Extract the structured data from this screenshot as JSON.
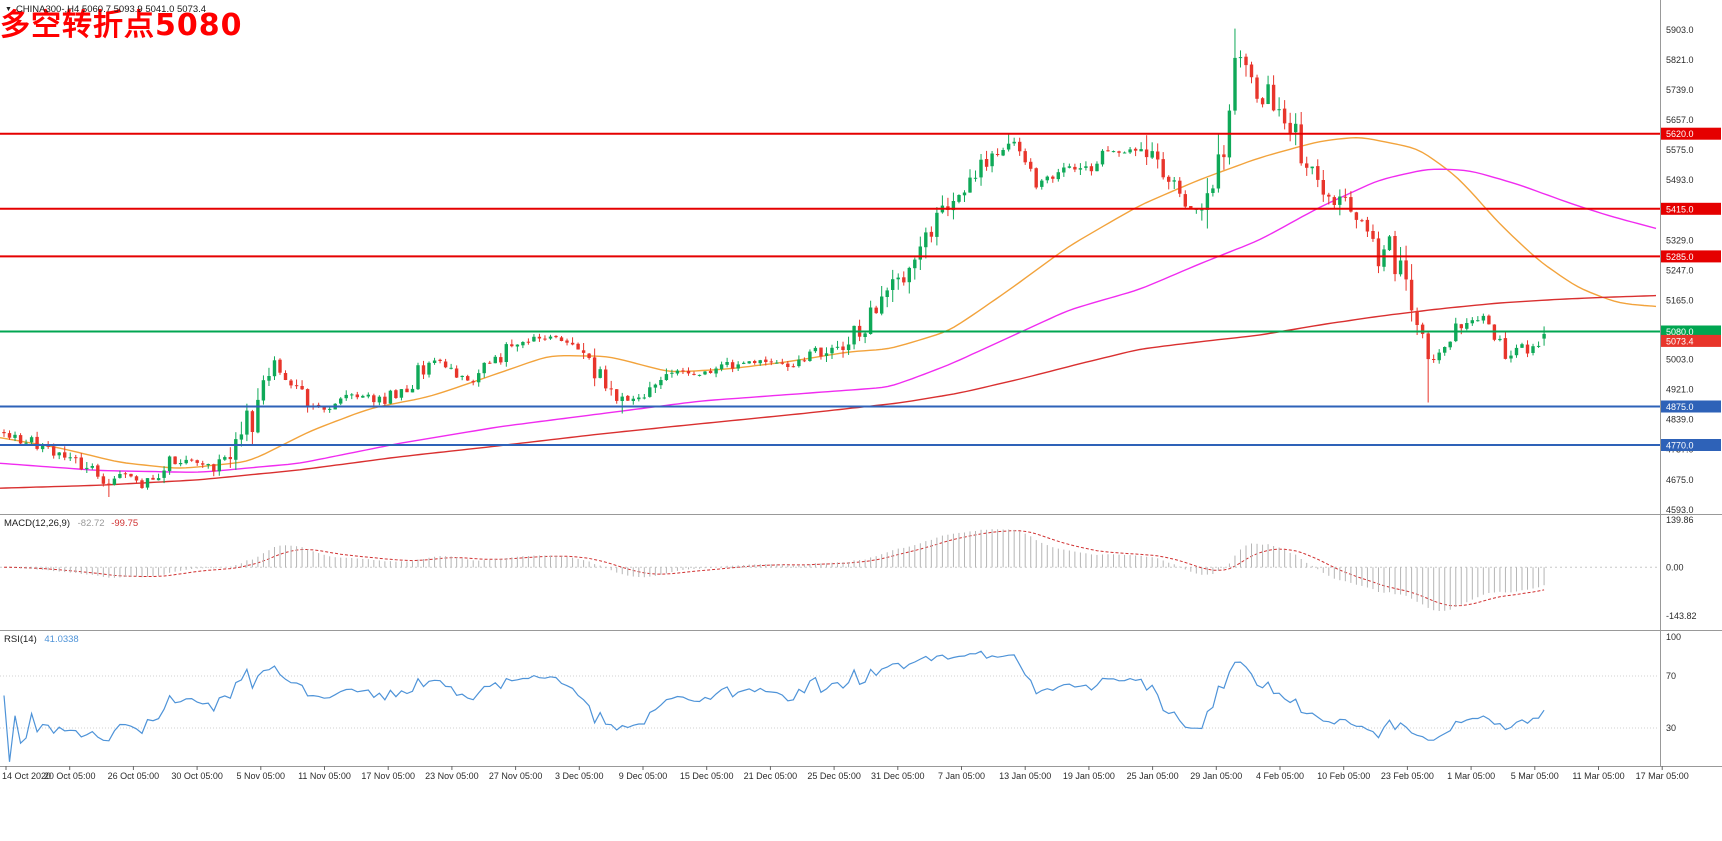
{
  "symbol_bar": {
    "dropdown_icon": "▼",
    "symbol": "CHINA300-",
    "timeframe": "H4",
    "open": 5060.7,
    "high": 5093.9,
    "low": 5041.0,
    "close": 5073.4,
    "text": "CHINA300-,H4  5060.7 5093.9 5041.0 5073.4"
  },
  "annotation": {
    "text": "多空转折点5080",
    "color": "#FF0000"
  },
  "colors": {
    "up": "#0FA958",
    "down": "#E8352B",
    "ma_fast": "#F2A33C",
    "ma_mid": "#F02CF0",
    "ma_slow": "#D93030",
    "level_red": "#E50000",
    "level_green": "#00A651",
    "level_blue": "#2E62B8",
    "macd_hist": "#B5B5B5",
    "macd_signal": "#D03030",
    "rsi": "#4E93D8",
    "axis_text": "#2B2B2B",
    "separator": "#999999",
    "tag_text": "#FFFFFF"
  },
  "levels": [
    {
      "value": 5620.0,
      "label": "5620.0",
      "type": "resistance",
      "color_key": "level_red"
    },
    {
      "value": 5415.0,
      "label": "5415.0",
      "type": "resistance",
      "color_key": "level_red"
    },
    {
      "value": 5285.0,
      "label": "5285.0",
      "type": "resistance",
      "color_key": "level_red"
    },
    {
      "value": 5080.0,
      "label": "5080.0",
      "type": "pivot",
      "color_key": "level_green"
    },
    {
      "value": 4875.0,
      "label": "4875.0",
      "type": "support",
      "color_key": "level_blue"
    },
    {
      "value": 4770.0,
      "label": "4770.0",
      "type": "support",
      "color_key": "level_blue"
    }
  ],
  "current_price_tag": {
    "value": 5073.4,
    "label": "5073.4"
  },
  "price_axis": {
    "labels": [
      "5903.0",
      "5821.0",
      "5739.0",
      "5657.0",
      "5575.0",
      "5493.0",
      "5411.0",
      "5329.0",
      "5247.0",
      "5165.0",
      "5083.0",
      "5003.0",
      "4921.0",
      "4839.0",
      "4757.0",
      "4675.0",
      "4593.0"
    ]
  },
  "time_axis": {
    "labels": [
      "14 Oct 2020",
      "20 Oct 05:00",
      "26 Oct 05:00",
      "30 Oct 05:00",
      "5 Nov 05:00",
      "11 Nov 05:00",
      "17 Nov 05:00",
      "23 Nov 05:00",
      "27 Nov 05:00",
      "3 Dec 05:00",
      "9 Dec 05:00",
      "15 Dec 05:00",
      "21 Dec 05:00",
      "25 Dec 05:00",
      "31 Dec 05:00",
      "7 Jan 05:00",
      "13 Jan 05:00",
      "19 Jan 05:00",
      "25 Jan 05:00",
      "29 Jan 05:00",
      "4 Feb 05:00",
      "10 Feb 05:00",
      "23 Feb 05:00",
      "1 Mar 05:00",
      "5 Mar 05:00",
      "11 Mar 05:00",
      "17 Mar 05:00"
    ]
  },
  "indicators": {
    "macd": {
      "name": "MACD(12,26,9)",
      "main_value": "-82.72",
      "signal_value": "-99.75",
      "scale_labels": [
        "139.86",
        "0.00",
        "-143.82"
      ]
    },
    "rsi": {
      "name": "RSI(14)",
      "value": "41.0338",
      "scale_labels": [
        "100",
        "70",
        "30"
      ],
      "levels": [
        70,
        30
      ]
    }
  },
  "chart_data": {
    "type": "candlestick",
    "symbol": "CHINA300-",
    "timeframe": "H4",
    "ylim": [
      4587,
      5936
    ],
    "macd_ylim": [
      -180,
      152
    ],
    "rsi_ylim": [
      0,
      100
    ],
    "candle_count": 280,
    "candle_spacing_px": 5.52,
    "seed": 11,
    "price_path": [
      [
        0,
        4805
      ],
      [
        25,
        4783
      ],
      [
        55,
        4760
      ],
      [
        75,
        4735
      ],
      [
        95,
        4700
      ],
      [
        110,
        4665
      ],
      [
        125,
        4695
      ],
      [
        140,
        4663
      ],
      [
        155,
        4668
      ],
      [
        170,
        4718
      ],
      [
        192,
        4735
      ],
      [
        210,
        4705
      ],
      [
        228,
        4738
      ],
      [
        245,
        4798
      ],
      [
        256,
        4868
      ],
      [
        266,
        4968
      ],
      [
        274,
        4990
      ],
      [
        288,
        4948
      ],
      [
        305,
        4890
      ],
      [
        322,
        4862
      ],
      [
        340,
        4893
      ],
      [
        360,
        4908
      ],
      [
        384,
        4893
      ],
      [
        405,
        4932
      ],
      [
        425,
        4985
      ],
      [
        440,
        5002
      ],
      [
        455,
        4962
      ],
      [
        470,
        4944
      ],
      [
        490,
        5010
      ],
      [
        512,
        5032
      ],
      [
        532,
        5062
      ],
      [
        550,
        5072
      ],
      [
        563,
        5042
      ],
      [
        576,
        5052
      ],
      [
        592,
        5002
      ],
      [
        606,
        4942
      ],
      [
        620,
        4888
      ],
      [
        640,
        4905
      ],
      [
        660,
        4952
      ],
      [
        680,
        4972
      ],
      [
        704,
        4962
      ],
      [
        722,
        4992
      ],
      [
        742,
        4986
      ],
      [
        768,
        5002
      ],
      [
        786,
        4986
      ],
      [
        806,
        5012
      ],
      [
        832,
        5032
      ],
      [
        848,
        5062
      ],
      [
        862,
        5095
      ],
      [
        876,
        5152
      ],
      [
        896,
        5215
      ],
      [
        908,
        5272
      ],
      [
        922,
        5332
      ],
      [
        936,
        5392
      ],
      [
        960,
        5438
      ],
      [
        976,
        5498
      ],
      [
        992,
        5552
      ],
      [
        1010,
        5588
      ],
      [
        1024,
        5562
      ],
      [
        1038,
        5478
      ],
      [
        1052,
        5502
      ],
      [
        1066,
        5538
      ],
      [
        1088,
        5522
      ],
      [
        1104,
        5562
      ],
      [
        1120,
        5582
      ],
      [
        1136,
        5570
      ],
      [
        1152,
        5555
      ],
      [
        1166,
        5495
      ],
      [
        1180,
        5442
      ],
      [
        1196,
        5408
      ],
      [
        1210,
        5442
      ],
      [
        1218,
        5502
      ],
      [
        1226,
        5628
      ],
      [
        1235,
        5852
      ],
      [
        1243,
        5812
      ],
      [
        1252,
        5778
      ],
      [
        1260,
        5702
      ],
      [
        1270,
        5742
      ],
      [
        1280,
        5682
      ],
      [
        1292,
        5608
      ],
      [
        1304,
        5572
      ],
      [
        1316,
        5492
      ],
      [
        1328,
        5452
      ],
      [
        1344,
        5422
      ],
      [
        1356,
        5382
      ],
      [
        1368,
        5322
      ],
      [
        1378,
        5298
      ],
      [
        1388,
        5312
      ],
      [
        1400,
        5252
      ],
      [
        1410,
        5172
      ],
      [
        1420,
        5092
      ],
      [
        1430,
        4992
      ],
      [
        1440,
        5022
      ],
      [
        1450,
        5062
      ],
      [
        1464,
        5092
      ],
      [
        1476,
        5122
      ],
      [
        1486,
        5098
      ],
      [
        1496,
        5058
      ],
      [
        1506,
        5012
      ],
      [
        1518,
        5042
      ],
      [
        1528,
        5022
      ],
      [
        1536,
        5052
      ],
      [
        1546,
        5066
      ]
    ],
    "spikes": [
      {
        "x": 110,
        "low": 4628
      },
      {
        "x": 620,
        "low": 4856
      },
      {
        "x": 1010,
        "high": 5622
      },
      {
        "x": 1148,
        "high": 5616
      },
      {
        "x": 1235,
        "high": 5907
      },
      {
        "x": 1428,
        "low": 4886
      }
    ],
    "last_candle": {
      "open": 5060.7,
      "high": 5093.9,
      "low": 5041.0,
      "close": 5073.4
    },
    "moving_averages": [
      {
        "name": "MA-fast",
        "color_key": "ma_fast",
        "points": [
          [
            0,
            4790
          ],
          [
            60,
            4762
          ],
          [
            120,
            4722
          ],
          [
            180,
            4705
          ],
          [
            250,
            4725
          ],
          [
            310,
            4808
          ],
          [
            370,
            4870
          ],
          [
            430,
            4902
          ],
          [
            490,
            4958
          ],
          [
            550,
            5015
          ],
          [
            610,
            5012
          ],
          [
            670,
            4968
          ],
          [
            730,
            4978
          ],
          [
            790,
            4998
          ],
          [
            850,
            5025
          ],
          [
            890,
            5032
          ],
          [
            950,
            5082
          ],
          [
            1010,
            5195
          ],
          [
            1070,
            5315
          ],
          [
            1140,
            5425
          ],
          [
            1200,
            5495
          ],
          [
            1260,
            5555
          ],
          [
            1320,
            5600
          ],
          [
            1360,
            5612
          ],
          [
            1420,
            5578
          ],
          [
            1460,
            5496
          ],
          [
            1500,
            5372
          ],
          [
            1540,
            5270
          ],
          [
            1580,
            5196
          ],
          [
            1620,
            5156
          ],
          [
            1658,
            5148
          ]
        ]
      },
      {
        "name": "MA-mid",
        "color_key": "ma_mid",
        "points": [
          [
            0,
            4720
          ],
          [
            100,
            4700
          ],
          [
            200,
            4695
          ],
          [
            300,
            4720
          ],
          [
            400,
            4775
          ],
          [
            500,
            4820
          ],
          [
            600,
            4855
          ],
          [
            700,
            4890
          ],
          [
            800,
            4910
          ],
          [
            890,
            4928
          ],
          [
            950,
            4990
          ],
          [
            1010,
            5065
          ],
          [
            1070,
            5140
          ],
          [
            1140,
            5195
          ],
          [
            1200,
            5265
          ],
          [
            1260,
            5330
          ],
          [
            1320,
            5420
          ],
          [
            1380,
            5495
          ],
          [
            1430,
            5525
          ],
          [
            1470,
            5520
          ],
          [
            1520,
            5480
          ],
          [
            1570,
            5430
          ],
          [
            1610,
            5395
          ],
          [
            1658,
            5360
          ]
        ]
      },
      {
        "name": "MA-slow",
        "color_key": "ma_slow",
        "points": [
          [
            0,
            4652
          ],
          [
            100,
            4660
          ],
          [
            200,
            4675
          ],
          [
            300,
            4702
          ],
          [
            400,
            4738
          ],
          [
            500,
            4768
          ],
          [
            600,
            4800
          ],
          [
            700,
            4828
          ],
          [
            800,
            4855
          ],
          [
            900,
            4885
          ],
          [
            960,
            4912
          ],
          [
            1020,
            4950
          ],
          [
            1080,
            4992
          ],
          [
            1140,
            5032
          ],
          [
            1200,
            5052
          ],
          [
            1260,
            5070
          ],
          [
            1320,
            5098
          ],
          [
            1380,
            5122
          ],
          [
            1440,
            5142
          ],
          [
            1500,
            5158
          ],
          [
            1560,
            5168
          ],
          [
            1610,
            5174
          ],
          [
            1658,
            5178
          ]
        ]
      }
    ]
  }
}
